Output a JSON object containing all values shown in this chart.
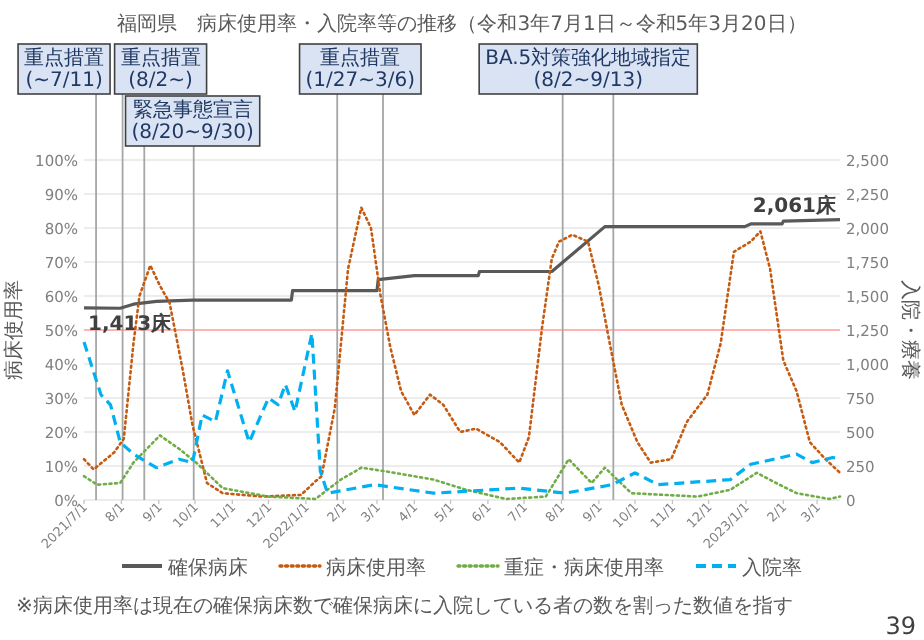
{
  "chart_data": {
    "type": "line",
    "title": "福岡県　病床使用率・入院率等の推移（令和3年7月1日～令和5年3月20日）",
    "ylabel": "病床使用率",
    "y2label": "入院・療養",
    "xlim": [
      "2021-07-01",
      "2023-03-20"
    ],
    "ylim": [
      0,
      100
    ],
    "yticks": [
      {
        "value": 0,
        "label": "0%"
      },
      {
        "value": 10,
        "label": "10%"
      },
      {
        "value": 20,
        "label": "20%"
      },
      {
        "value": 30,
        "label": "30%"
      },
      {
        "value": 40,
        "label": "40%"
      },
      {
        "value": 50,
        "label": "50%"
      },
      {
        "value": 60,
        "label": "60%"
      },
      {
        "value": 70,
        "label": "70%"
      },
      {
        "value": 80,
        "label": "80%"
      },
      {
        "value": 90,
        "label": "90%"
      },
      {
        "value": 100,
        "label": "100%"
      }
    ],
    "y2lim": [
      0,
      2500
    ],
    "y2ticks": [
      0,
      250,
      500,
      750,
      {
        "value": 1000,
        "label": "1,000"
      },
      {
        "value": 1250,
        "label": "1,250"
      },
      {
        "value": 1500,
        "label": "1,500"
      },
      {
        "value": 1750,
        "label": "1,750"
      },
      {
        "value": 2000,
        "label": "2,000"
      },
      {
        "value": 2250,
        "label": "2,250"
      },
      {
        "value": 2500,
        "label": "2,500"
      }
    ],
    "xticks": [
      {
        "value": "2021-07-01",
        "label": "2021/7/1"
      },
      {
        "value": "2021-08-01",
        "label": "8/1"
      },
      {
        "value": "2021-09-01",
        "label": "9/1"
      },
      {
        "value": "2021-10-01",
        "label": "10/1"
      },
      {
        "value": "2021-11-01",
        "label": "11/1"
      },
      {
        "value": "2021-12-01",
        "label": "12/1"
      },
      {
        "value": "2022-01-01",
        "label": "2022/1/1"
      },
      {
        "value": "2022-02-01",
        "label": "2/1"
      },
      {
        "value": "2022-03-01",
        "label": "3/1"
      },
      {
        "value": "2022-04-01",
        "label": "4/1"
      },
      {
        "value": "2022-05-01",
        "label": "5/1"
      },
      {
        "value": "2022-06-01",
        "label": "6/1"
      },
      {
        "value": "2022-07-01",
        "label": "7/1"
      },
      {
        "value": "2022-08-01",
        "label": "8/1"
      },
      {
        "value": "2022-09-01",
        "label": "9/1"
      },
      {
        "value": "2022-10-01",
        "label": "10/1"
      },
      {
        "value": "2022-11-01",
        "label": "11/1"
      },
      {
        "value": "2022-12-01",
        "label": "12/1"
      },
      {
        "value": "2023-01-01",
        "label": "2023/1/1"
      },
      {
        "value": "2023-02-01",
        "label": "2/1"
      },
      {
        "value": "2023-03-01",
        "label": "3/1"
      }
    ],
    "grid": "y",
    "legend": "bottom",
    "series": [
      {
        "name": "確保病床",
        "color": "#595959",
        "line_style": "solid",
        "axis": "y2",
        "x": [
          "2021-07-01",
          "2021-07-31",
          "2021-08-11",
          "2021-08-30",
          "2021-09-29",
          "2021-12-20",
          "2021-12-21",
          "2022-03-01",
          "2022-03-02",
          "2022-04-01",
          "2022-05-24",
          "2022-05-25",
          "2022-07-24",
          "2022-09-06",
          "2022-12-31",
          "2023-01-05",
          "2023-01-31",
          "2023-02-01",
          "2023-03-20"
        ],
        "values": [
          1413,
          1410,
          1440,
          1460,
          1470,
          1470,
          1540,
          1540,
          1620,
          1650,
          1650,
          1680,
          1680,
          2010,
          2010,
          2030,
          2030,
          2050,
          2061
        ],
        "value_labels": [
          "1,413床",
          null,
          null,
          null,
          null,
          null,
          null,
          null,
          null,
          null,
          null,
          null,
          null,
          null,
          null,
          null,
          null,
          null,
          "2,061床"
        ]
      },
      {
        "name": "病床使用率",
        "color": "#c55a11",
        "line_style": "dotted",
        "x": [
          "2021-07-01",
          "2021-07-09",
          "2021-07-26",
          "2021-08-03",
          "2021-08-11",
          "2021-08-16",
          "2021-08-25",
          "2021-09-02",
          "2021-09-10",
          "2021-09-21",
          "2021-09-29",
          "2021-10-11",
          "2021-10-24",
          "2021-11-26",
          "2021-12-28",
          "2022-01-09",
          "2022-01-14",
          "2022-01-25",
          "2022-02-05",
          "2022-02-16",
          "2022-02-24",
          "2022-03-04",
          "2022-03-12",
          "2022-03-21",
          "2022-04-01",
          "2022-04-14",
          "2022-04-25",
          "2022-05-09",
          "2022-05-22",
          "2022-06-11",
          "2022-06-27",
          "2022-07-05",
          "2022-07-16",
          "2022-07-24",
          "2022-07-30",
          "2022-08-10",
          "2022-08-23",
          "2022-09-01",
          "2022-09-09",
          "2022-09-20",
          "2022-10-03",
          "2022-10-14",
          "2022-10-31",
          "2022-11-13",
          "2022-11-30",
          "2022-12-11",
          "2022-12-22",
          "2023-01-05",
          "2023-01-13",
          "2023-01-21",
          "2023-02-01",
          "2023-02-12",
          "2023-02-23",
          "2023-03-08",
          "2023-03-20"
        ],
        "values": [
          12,
          9,
          14,
          18,
          46,
          60,
          69,
          63,
          58,
          38,
          22,
          5,
          2,
          1,
          1.5,
          5.5,
          7,
          27,
          68,
          86,
          80,
          60,
          45,
          32,
          25,
          31,
          28,
          20,
          21,
          17,
          11,
          18.5,
          51,
          71,
          76,
          78,
          76,
          63,
          48,
          28,
          17,
          11,
          12,
          23,
          31,
          46,
          73,
          76,
          79,
          68,
          41,
          32,
          17,
          12,
          8
        ]
      },
      {
        "name": "重症・病床使用率",
        "color": "#70ad47",
        "line_style": "dotted",
        "x": [
          "2021-07-01",
          "2021-07-12",
          "2021-07-31",
          "2021-08-11",
          "2021-09-02",
          "2021-09-18",
          "2021-10-02",
          "2021-10-24",
          "2021-12-01",
          "2022-01-09",
          "2022-01-30",
          "2022-02-16",
          "2022-03-07",
          "2022-04-17",
          "2022-05-14",
          "2022-06-16",
          "2022-07-19",
          "2022-08-07",
          "2022-08-26",
          "2022-09-06",
          "2022-09-28",
          "2022-11-22",
          "2022-12-19",
          "2023-01-10",
          "2023-01-26",
          "2023-02-12",
          "2023-03-11",
          "2023-03-20"
        ],
        "values": [
          7,
          4.5,
          5,
          11,
          19,
          15,
          11,
          3.5,
          1,
          0.3,
          6,
          9.5,
          8.5,
          6,
          3,
          0.3,
          1,
          12,
          5,
          9.5,
          2,
          1,
          3,
          8,
          5,
          2,
          0.3,
          1
        ]
      },
      {
        "name": "入院率",
        "color": "#00b0f0",
        "line_style": "dashed",
        "x": [
          "2021-07-01",
          "2021-07-15",
          "2021-07-23",
          "2021-07-31",
          "2021-08-11",
          "2021-08-30",
          "2021-09-18",
          "2021-09-29",
          "2021-10-07",
          "2021-10-18",
          "2021-10-28",
          "2021-11-15",
          "2021-12-01",
          "2021-12-09",
          "2021-12-15",
          "2021-12-23",
          "2022-01-06",
          "2022-01-13",
          "2022-01-19",
          "2022-02-27",
          "2022-04-17",
          "2022-06-27",
          "2022-08-04",
          "2022-09-12",
          "2022-10-01",
          "2022-10-20",
          "2022-12-19",
          "2023-01-05",
          "2023-01-24",
          "2023-02-12",
          "2023-02-25",
          "2023-03-14",
          "2023-03-20"
        ],
        "values": [
          46.5,
          31,
          28,
          17,
          13.5,
          9.5,
          12,
          11,
          25,
          23,
          38,
          17,
          30,
          28,
          34,
          26,
          49,
          8.5,
          2,
          4.5,
          2,
          3.5,
          2,
          4.5,
          8,
          4.5,
          6,
          10.5,
          12,
          13.5,
          11,
          12.5,
          12
        ]
      }
    ],
    "ref_lines": [
      {
        "axis": "y",
        "value": 50,
        "color": "#ffb3b3"
      },
      {
        "axis": "x",
        "value": "2021-07-11",
        "label": "重点措置\n(~7/11)",
        "color": "#a6a6a6"
      },
      {
        "axis": "x",
        "value": "2021-08-02",
        "label": "重点措置\n(8/2~)",
        "color": "#a6a6a6"
      },
      {
        "axis": "x",
        "value": "2021-08-20",
        "label": "緊急事態宣言\n(8/20~9/30)",
        "color": "#a6a6a6"
      },
      {
        "axis": "x",
        "value": "2021-09-30",
        "color": "#a6a6a6"
      },
      {
        "axis": "x",
        "value": "2022-01-27",
        "label": "重点措置\n(1/27~3/6)",
        "color": "#a6a6a6"
      },
      {
        "axis": "x",
        "value": "2022-03-06",
        "color": "#a6a6a6"
      },
      {
        "axis": "x",
        "value": "2022-08-02",
        "label": "BA.5対策強化地域指定\n(8/2~9/13)",
        "color": "#a6a6a6"
      },
      {
        "axis": "x",
        "value": "2022-09-13",
        "color": "#a6a6a6"
      }
    ],
    "annotations": [
      "※病床使用率は現在の確保病床数で確保病床に入院している者の数を割った数値を指す",
      "39"
    ]
  }
}
